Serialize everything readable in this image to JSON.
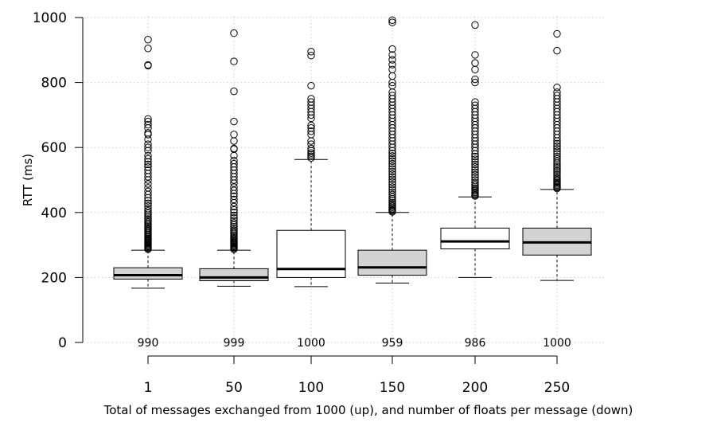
{
  "chart_data": {
    "type": "boxplot",
    "title": "",
    "xlabel": "Total of messages exchanged from 1000 (up), and number of floats per message (down)",
    "ylabel": "RTT (ms)",
    "ylim": [
      0,
      1000
    ],
    "yticks": [
      0,
      200,
      400,
      600,
      800,
      1000
    ],
    "grid": true,
    "categories": [
      "1",
      "50",
      "100",
      "150",
      "200",
      "250"
    ],
    "counts": [
      "990",
      "999",
      "1000",
      "959",
      "986",
      "1000"
    ],
    "fill_colors": [
      "#d3d3d3",
      "#d3d3d3",
      "#ffffff",
      "#d3d3d3",
      "#ffffff",
      "#d3d3d3"
    ],
    "boxes": [
      {
        "whisker_low": 167,
        "q1": 195,
        "median": 207,
        "q3": 230,
        "whisker_high": 284,
        "outliers": [
          287,
          290,
          293,
          296,
          299,
          302,
          305,
          308,
          311,
          314,
          317,
          320,
          324,
          328,
          332,
          336,
          340,
          344,
          348,
          352,
          356,
          360,
          365,
          370,
          375,
          380,
          386,
          392,
          398,
          405,
          412,
          420,
          428,
          436,
          445,
          455,
          465,
          476,
          488,
          500,
          510,
          520,
          530,
          540,
          548,
          556,
          565,
          575,
          590,
          600,
          610,
          625,
          640,
          645,
          660,
          670,
          680,
          688,
          852,
          854,
          905,
          932
        ]
      },
      {
        "whisker_low": 173,
        "q1": 190,
        "median": 200,
        "q3": 227,
        "whisker_high": 284,
        "outliers": [
          287,
          290,
          293,
          296,
          299,
          302,
          305,
          308,
          311,
          314,
          318,
          322,
          326,
          330,
          335,
          340,
          345,
          350,
          356,
          362,
          368,
          375,
          383,
          391,
          400,
          408,
          418,
          430,
          440,
          450,
          458,
          468,
          478,
          490,
          500,
          510,
          520,
          530,
          540,
          550,
          560,
          575,
          595,
          597,
          620,
          640,
          680,
          773,
          865,
          952
        ]
      },
      {
        "whisker_low": 172,
        "q1": 200,
        "median": 226,
        "q3": 345,
        "whisker_high": 563,
        "outliers": [
          568,
          573,
          578,
          583,
          590,
          597,
          610,
          620,
          640,
          650,
          660,
          668,
          690,
          700,
          710,
          720,
          730,
          740,
          750,
          790,
          883,
          895
        ]
      },
      {
        "whisker_low": 183,
        "q1": 207,
        "median": 231,
        "q3": 284,
        "whisker_high": 400,
        "outliers": [
          402,
          405,
          408,
          412,
          416,
          420,
          425,
          430,
          436,
          442,
          448,
          455,
          462,
          470,
          478,
          486,
          494,
          502,
          510,
          518,
          526,
          534,
          542,
          550,
          558,
          566,
          574,
          582,
          590,
          600,
          610,
          620,
          630,
          640,
          650,
          660,
          670,
          680,
          690,
          700,
          710,
          720,
          730,
          740,
          750,
          760,
          770,
          790,
          800,
          820,
          840,
          855,
          870,
          885,
          903,
          985,
          992
        ]
      },
      {
        "whisker_low": 200,
        "q1": 288,
        "median": 311,
        "q3": 352,
        "whisker_high": 448,
        "outliers": [
          451,
          454,
          458,
          462,
          466,
          470,
          475,
          480,
          486,
          492,
          500,
          508,
          516,
          524,
          532,
          540,
          548,
          556,
          564,
          572,
          580,
          590,
          600,
          610,
          620,
          630,
          640,
          650,
          660,
          670,
          680,
          690,
          700,
          710,
          720,
          730,
          740,
          800,
          810,
          840,
          860,
          885,
          977
        ]
      },
      {
        "whisker_low": 191,
        "q1": 269,
        "median": 308,
        "q3": 352,
        "whisker_high": 471,
        "outliers": [
          474,
          477,
          480,
          484,
          488,
          492,
          496,
          500,
          505,
          510,
          516,
          522,
          528,
          534,
          540,
          546,
          552,
          558,
          565,
          572,
          580,
          588,
          596,
          604,
          612,
          620,
          630,
          640,
          650,
          660,
          670,
          680,
          690,
          700,
          710,
          720,
          730,
          740,
          750,
          760,
          770,
          785,
          898,
          950
        ]
      }
    ]
  }
}
